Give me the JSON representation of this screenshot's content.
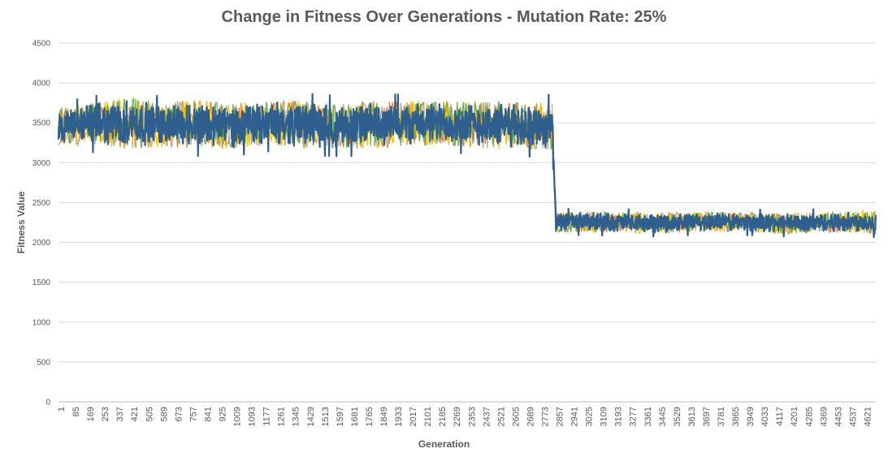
{
  "chart_data": {
    "type": "line",
    "title": "Change in Fitness Over Generations - Mutation Rate: 25%",
    "xlabel": "Generation",
    "ylabel": "Fitness Value",
    "ylim": [
      0,
      4500
    ],
    "yticks": [
      "0",
      "500",
      "1000",
      "1500",
      "2000",
      "2500",
      "3000",
      "3500",
      "4000",
      "4500"
    ],
    "xticks": [
      "1",
      "85",
      "169",
      "253",
      "337",
      "421",
      "505",
      "589",
      "673",
      "757",
      "841",
      "925",
      "1009",
      "1093",
      "1177",
      "1261",
      "1345",
      "1429",
      "1513",
      "1597",
      "1681",
      "1765",
      "1849",
      "1933",
      "2017",
      "2101",
      "2185",
      "2269",
      "2353",
      "2437",
      "2521",
      "2605",
      "2689",
      "2773",
      "2857",
      "2941",
      "3025",
      "3109",
      "3193",
      "3277",
      "3361",
      "3445",
      "3529",
      "3613",
      "3697",
      "3781",
      "3865",
      "3949",
      "4033",
      "4117",
      "4201",
      "4285",
      "4369",
      "4453",
      "4537",
      "4621"
    ],
    "xlim": [
      1,
      4700
    ],
    "grid": true,
    "legend": "none",
    "series": [
      {
        "color": "#2F5F8F",
        "x": [
          1,
          200,
          400,
          600,
          800,
          1000,
          1200,
          1400,
          1600,
          1800,
          2000,
          2200,
          2400,
          2600,
          2840,
          2860,
          3000,
          3200,
          3400,
          3600,
          3800,
          4000,
          4200,
          4400,
          4600,
          4700
        ],
        "values": [
          3450,
          3480,
          3500,
          3470,
          3490,
          3460,
          3500,
          3480,
          3460,
          3470,
          3490,
          3500,
          3480,
          3470,
          3460,
          2250,
          2260,
          2250,
          2240,
          2250,
          2260,
          2250,
          2240,
          2250,
          2260,
          2250
        ],
        "band_low": [
          3250,
          3200,
          3150,
          3220,
          3200,
          3200,
          3210,
          3180,
          3180,
          3160,
          3220,
          3240,
          3200,
          3180,
          3200,
          2120,
          2130,
          2120,
          2110,
          2130,
          2130,
          2120,
          2120,
          2130,
          2120,
          2110
        ],
        "band_high": [
          3700,
          3720,
          3780,
          3740,
          3800,
          3760,
          3740,
          3760,
          3740,
          3740,
          3760,
          3780,
          3760,
          3760,
          3780,
          2360,
          2380,
          2370,
          2360,
          2370,
          2380,
          2360,
          2370,
          2380,
          2380,
          2390
        ]
      },
      {
        "color": "#ED7D31"
      },
      {
        "color": "#A5A5A5"
      },
      {
        "color": "#FFC000"
      },
      {
        "color": "#70AD47"
      }
    ]
  }
}
